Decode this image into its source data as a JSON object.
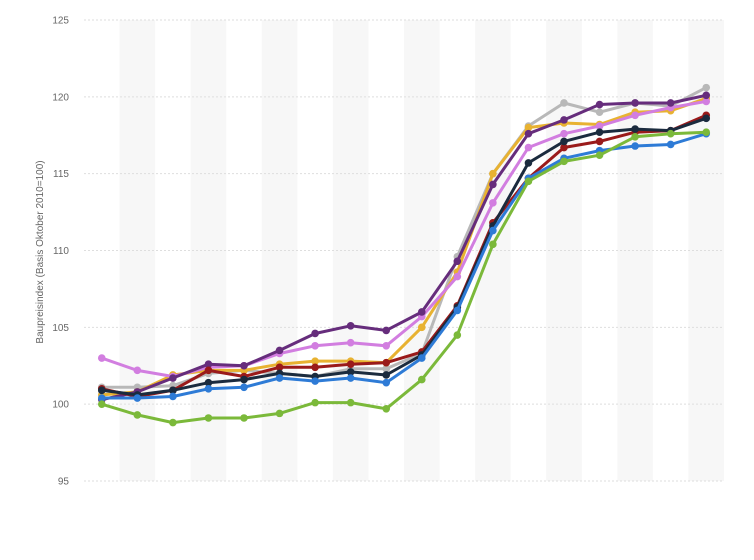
{
  "chart_data": {
    "type": "line",
    "title": "",
    "xlabel": "",
    "ylabel": "Baupreisindex (Basis Oktober 2010=100)",
    "ylim": [
      95,
      125
    ],
    "yticks": [
      95,
      100,
      105,
      110,
      115,
      120,
      125
    ],
    "grid": "horizontal dashed",
    "x_count": 18,
    "series": [
      {
        "color": "#b8b8b8",
        "values": [
          101.1,
          101.1,
          101.2,
          102.0,
          102.2,
          102.0,
          101.8,
          102.3,
          102.3,
          103.3,
          109.6,
          115.0,
          118.1,
          119.6,
          119.0,
          119.6,
          119.4,
          120.6
        ]
      },
      {
        "color": "#e8b231",
        "values": [
          100.6,
          100.8,
          101.9,
          102.2,
          102.2,
          102.6,
          102.8,
          102.8,
          102.7,
          105.0,
          108.6,
          115.0,
          118.0,
          118.3,
          118.2,
          119.0,
          119.1,
          119.9
        ]
      },
      {
        "color": "#d27ee0",
        "values": [
          103.0,
          102.2,
          101.8,
          102.4,
          102.5,
          103.3,
          103.8,
          104.0,
          103.8,
          105.7,
          108.3,
          113.1,
          116.7,
          117.6,
          118.1,
          118.8,
          119.3,
          119.7
        ]
      },
      {
        "color": "#662d7c",
        "values": [
          100.3,
          100.8,
          101.7,
          102.6,
          102.5,
          103.5,
          104.6,
          105.1,
          104.8,
          106.0,
          109.3,
          114.3,
          117.6,
          118.5,
          119.5,
          119.6,
          119.6,
          120.1
        ]
      },
      {
        "color": "#9a1a1a",
        "values": [
          101.0,
          100.5,
          100.9,
          102.2,
          101.8,
          102.4,
          102.4,
          102.6,
          102.7,
          103.4,
          106.4,
          111.8,
          114.7,
          116.7,
          117.1,
          117.7,
          117.8,
          118.8
        ]
      },
      {
        "color": "#1b2b3e",
        "values": [
          100.9,
          100.6,
          100.9,
          101.4,
          101.6,
          102.0,
          101.8,
          102.1,
          101.9,
          103.2,
          106.3,
          111.6,
          115.7,
          117.1,
          117.7,
          117.9,
          117.8,
          118.6
        ]
      },
      {
        "color": "#2e7bd6",
        "values": [
          100.4,
          100.4,
          100.5,
          101.0,
          101.1,
          101.7,
          101.5,
          101.7,
          101.4,
          103.0,
          106.1,
          111.3,
          114.7,
          116.0,
          116.5,
          116.8,
          116.9,
          117.6
        ]
      },
      {
        "color": "#7bb93a",
        "values": [
          100.0,
          99.3,
          98.8,
          99.1,
          99.1,
          99.4,
          100.1,
          100.1,
          99.7,
          101.6,
          104.5,
          110.4,
          114.5,
          115.8,
          116.2,
          117.4,
          117.6,
          117.7
        ]
      }
    ]
  }
}
